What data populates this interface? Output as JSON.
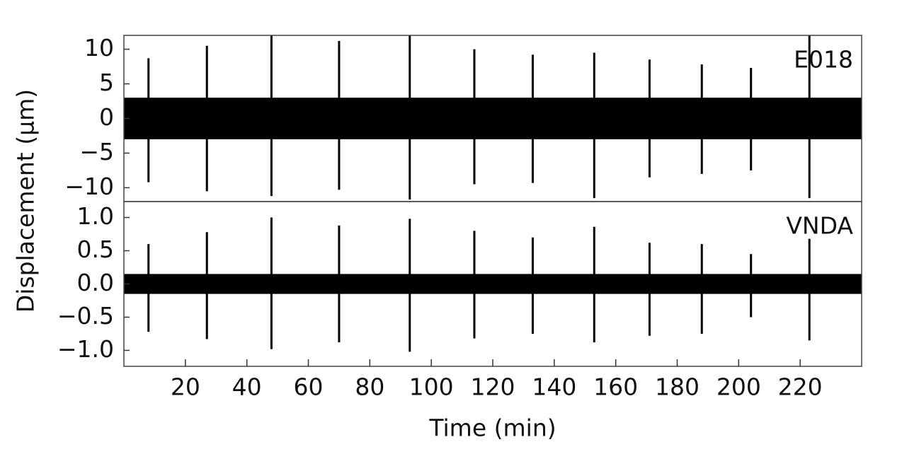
{
  "chart_data": {
    "type": "spikes",
    "xlabel": "Time (min)",
    "ylabel": "Displacement (μm)",
    "xlim": [
      0,
      240
    ],
    "xticks": [
      20,
      40,
      60,
      80,
      100,
      120,
      140,
      160,
      180,
      200,
      220
    ],
    "color": "#000000",
    "panels": [
      {
        "label": "E018",
        "ylim": [
          -12,
          12
        ],
        "yticks": [
          {
            "value": -10,
            "label": "−10"
          },
          {
            "value": -5,
            "label": "−5"
          },
          0,
          5,
          10
        ],
        "noise_band": [
          -3,
          3
        ],
        "x": [
          8,
          27,
          48,
          70,
          93,
          114,
          133,
          153,
          171,
          188,
          204,
          223
        ],
        "max": [
          8.7,
          10.5,
          12,
          11.2,
          12,
          10,
          9.2,
          9.5,
          8.5,
          7.8,
          7.3,
          12
        ],
        "min": [
          -9.2,
          -10.5,
          -11.2,
          -10.3,
          -11.7,
          -9.5,
          -9.3,
          -11.5,
          -8.5,
          -8,
          -7.5,
          -11.5
        ]
      },
      {
        "label": "VNDA",
        "ylim": [
          -1.24,
          1.24
        ],
        "yticks": [
          {
            "value": -1,
            "label": "−1.0"
          },
          {
            "value": -0.5,
            "label": "−0.5"
          },
          {
            "value": 0,
            "label": "0.0"
          },
          0.5,
          {
            "value": 1,
            "label": "1.0"
          }
        ],
        "noise_band": [
          -0.15,
          0.15
        ],
        "x": [
          8,
          27,
          48,
          70,
          93,
          114,
          133,
          153,
          171,
          188,
          204,
          223
        ],
        "max": [
          0.6,
          0.78,
          1.0,
          0.88,
          0.98,
          0.8,
          0.7,
          0.86,
          0.62,
          0.6,
          0.45,
          0.68
        ],
        "min": [
          -0.72,
          -0.83,
          -0.98,
          -0.88,
          -1.02,
          -0.82,
          -0.75,
          -0.88,
          -0.78,
          -0.75,
          -0.5,
          -0.85
        ]
      }
    ]
  }
}
